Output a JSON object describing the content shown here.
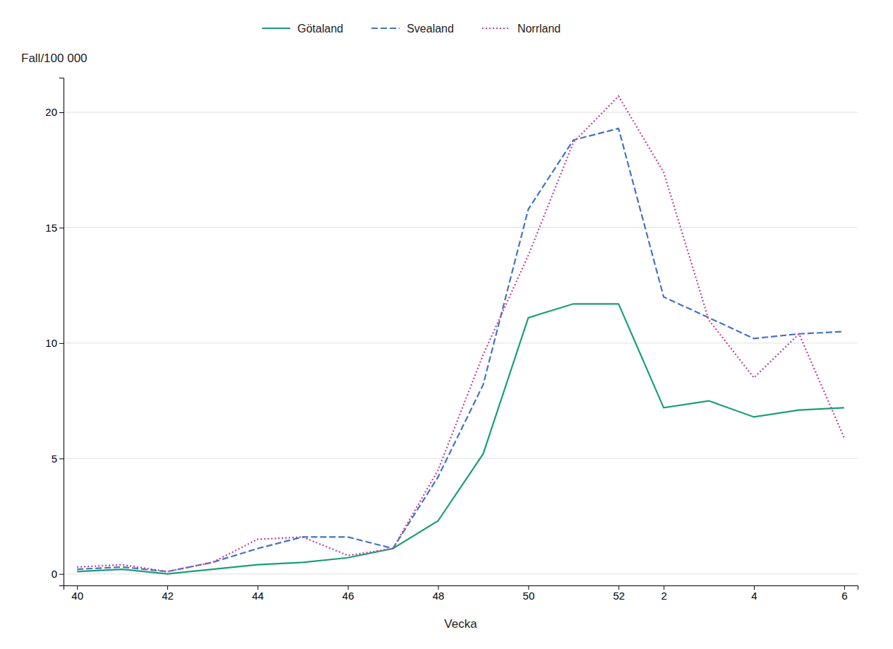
{
  "chart_data": {
    "type": "line",
    "xlabel": "Vecka",
    "ylabel": "Fall/100 000",
    "categories": [
      "40",
      null,
      "42",
      null,
      "44",
      null,
      "46",
      null,
      "48",
      null,
      "50",
      null,
      "52",
      "2",
      null,
      "4",
      null,
      "6"
    ],
    "series": [
      {
        "name": "Götaland",
        "color": "#1a9e78",
        "line_style": "solid",
        "values": [
          0.1,
          0.2,
          0.0,
          0.2,
          0.4,
          0.5,
          0.7,
          1.1,
          2.3,
          5.2,
          11.1,
          11.7,
          11.7,
          7.2,
          7.5,
          6.8,
          7.1,
          7.2
        ]
      },
      {
        "name": "Svealand",
        "color": "#4472c4",
        "line_style": "dashed",
        "values": [
          0.2,
          0.3,
          0.1,
          0.5,
          1.1,
          1.6,
          1.6,
          1.1,
          4.2,
          8.2,
          15.8,
          18.8,
          19.3,
          12.0,
          11.1,
          10.2,
          10.4,
          10.5
        ]
      },
      {
        "name": "Norrland",
        "color": "#c040a0",
        "line_style": "dotted",
        "values": [
          0.3,
          0.4,
          0.1,
          0.5,
          1.5,
          1.6,
          0.8,
          1.1,
          4.5,
          9.5,
          13.8,
          18.7,
          20.7,
          17.4,
          11.0,
          8.5,
          10.4,
          5.9
        ]
      }
    ],
    "ylim": [
      -0.5,
      21.5
    ],
    "yticks": [
      0,
      5,
      10,
      15,
      20
    ],
    "grid": true,
    "legend": "top"
  }
}
